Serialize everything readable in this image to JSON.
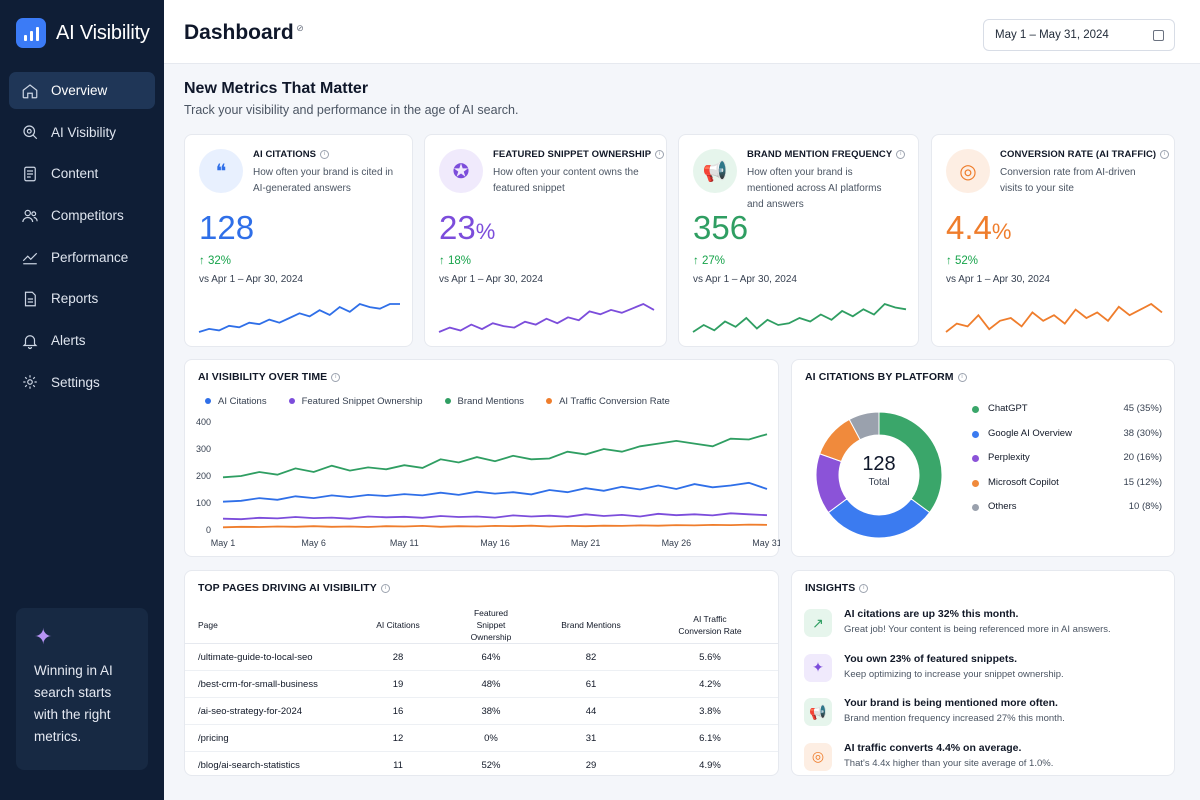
{
  "app": {
    "name": "AI Visibility"
  },
  "nav": [
    {
      "label": "Overview",
      "icon": "home-icon",
      "active": true
    },
    {
      "label": "AI Visibility",
      "icon": "search-icon"
    },
    {
      "label": "Content",
      "icon": "document-icon"
    },
    {
      "label": "Competitors",
      "icon": "users-icon"
    },
    {
      "label": "Performance",
      "icon": "trend-icon"
    },
    {
      "label": "Reports",
      "icon": "report-icon"
    },
    {
      "label": "Alerts",
      "icon": "bell-icon"
    },
    {
      "label": "Settings",
      "icon": "gear-icon"
    }
  ],
  "promo": {
    "text": "Winning in AI search starts with the right metrics.",
    "icon": "sparkle-icon"
  },
  "header": {
    "title": "Dashboard",
    "date_range": "May 1 – May 31, 2024"
  },
  "section": {
    "title": "New Metrics That Matter",
    "subtitle": "Track your visibility and performance in the age of AI search."
  },
  "metrics": [
    {
      "title": "AI CITATIONS",
      "desc": "How often your brand is cited in AI-generated answers",
      "value": "128",
      "unit": "",
      "change": "↑ 32%",
      "vs": "vs Apr 1 – Apr 30, 2024",
      "color": "#2f6fe8",
      "bg": "#e8f0fe",
      "icon": "quote-icon",
      "glyph": "❝",
      "spark": [
        6,
        8,
        7,
        10,
        9,
        12,
        11,
        14,
        12,
        15,
        18,
        16,
        20,
        17,
        22,
        19,
        24,
        22,
        21,
        24,
        24
      ]
    },
    {
      "title": "FEATURED SNIPPET OWNERSHIP",
      "desc": "How often your content owns the featured snippet",
      "value": "23",
      "unit": "%",
      "change": "↑ 18%",
      "vs": "vs Apr 1 – Apr 30, 2024",
      "color": "#7c4ddb",
      "bg": "#f0eafc",
      "icon": "badge-icon",
      "glyph": "✪",
      "spark": [
        4,
        7,
        5,
        9,
        6,
        10,
        8,
        7,
        11,
        9,
        13,
        10,
        14,
        12,
        18,
        16,
        19,
        17,
        20,
        23,
        19
      ]
    },
    {
      "title": "BRAND MENTION FREQUENCY",
      "desc": "How often your brand is mentioned across AI platforms and answers",
      "value": "356",
      "unit": "",
      "change": "↑ 27%",
      "vs": "vs Apr 1 – Apr 30, 2024",
      "color": "#2f9e62",
      "bg": "#e6f5ec",
      "icon": "megaphone-icon",
      "glyph": "📢",
      "spark": [
        6,
        10,
        7,
        12,
        9,
        14,
        8,
        13,
        10,
        11,
        14,
        12,
        16,
        13,
        18,
        15,
        19,
        16,
        22,
        20,
        19
      ]
    },
    {
      "title": "CONVERSION RATE (AI TRAFFIC)",
      "desc": "Conversion rate from AI-driven visits to your site",
      "value": "4.4",
      "unit": "%",
      "change": "↑ 52%",
      "vs": "vs Apr 1 – Apr 30, 2024",
      "color": "#ef7d2c",
      "bg": "#fdeee3",
      "icon": "target-icon",
      "glyph": "◎",
      "spark": [
        6,
        9,
        8,
        12,
        7,
        10,
        11,
        8,
        13,
        10,
        12,
        9,
        14,
        11,
        13,
        10,
        15,
        12,
        14,
        16,
        13
      ]
    }
  ],
  "visibility_chart": {
    "title": "AI VISIBILITY OVER TIME",
    "legend": [
      {
        "name": "AI Citations",
        "color": "#2f6fe8"
      },
      {
        "name": "Featured Snippet Ownership",
        "color": "#7c4ddb"
      },
      {
        "name": "Brand Mentions",
        "color": "#2f9e62"
      },
      {
        "name": "AI Traffic Conversion Rate",
        "color": "#ef7d2c"
      }
    ]
  },
  "platform_chart": {
    "title": "AI CITATIONS BY PLATFORM",
    "total_value": "128",
    "total_label": "Total"
  },
  "chart_data": [
    {
      "type": "line",
      "title": "AI VISIBILITY OVER TIME",
      "x_ticks": [
        "May 1",
        "May 6",
        "May 11",
        "May 16",
        "May 21",
        "May 26",
        "May 31"
      ],
      "x": [
        1,
        2,
        3,
        4,
        5,
        6,
        7,
        8,
        9,
        10,
        11,
        12,
        13,
        14,
        15,
        16,
        17,
        18,
        19,
        20,
        21,
        22,
        23,
        24,
        25,
        26,
        27,
        28,
        29,
        30,
        31
      ],
      "ylim": [
        0,
        400
      ],
      "y_ticks": [
        "0",
        "100",
        "200",
        "300",
        "400"
      ],
      "series": [
        {
          "name": "AI Citations",
          "color": "#2f6fe8",
          "values": [
            105,
            108,
            118,
            112,
            125,
            118,
            128,
            122,
            130,
            126,
            133,
            128,
            138,
            130,
            142,
            135,
            140,
            132,
            148,
            140,
            155,
            145,
            160,
            150,
            165,
            152,
            170,
            158,
            165,
            175,
            152
          ]
        },
        {
          "name": "Featured Snippet Ownership",
          "color": "#7c4ddb",
          "values": [
            42,
            40,
            45,
            43,
            48,
            44,
            46,
            42,
            50,
            47,
            49,
            45,
            52,
            48,
            50,
            46,
            54,
            50,
            53,
            49,
            58,
            52,
            56,
            50,
            60,
            55,
            58,
            54,
            62,
            58,
            55
          ]
        },
        {
          "name": "Brand Mentions",
          "color": "#2f9e62",
          "values": [
            195,
            200,
            215,
            205,
            228,
            215,
            238,
            220,
            232,
            225,
            240,
            230,
            262,
            250,
            270,
            255,
            275,
            262,
            265,
            290,
            280,
            300,
            290,
            310,
            320,
            330,
            320,
            310,
            338,
            335,
            355
          ]
        },
        {
          "name": "AI Traffic Conversion Rate",
          "color": "#ef7d2c",
          "values": [
            10,
            12,
            11,
            13,
            12,
            14,
            12,
            13,
            11,
            14,
            13,
            15,
            12,
            14,
            13,
            15,
            14,
            16,
            13,
            15,
            14,
            16,
            15,
            17,
            16,
            18,
            17,
            19,
            18,
            20,
            19
          ]
        }
      ]
    },
    {
      "type": "pie",
      "title": "AI CITATIONS BY PLATFORM",
      "categories": [
        "ChatGPT",
        "Google AI Overview",
        "Perplexity",
        "Microsoft Copilot",
        "Others"
      ],
      "values": [
        45,
        38,
        20,
        15,
        10
      ],
      "labels": [
        "45 (35%)",
        "38 (30%)",
        "20 (16%)",
        "15 (12%)",
        "10 (8%)"
      ],
      "colors": [
        "#3aa66a",
        "#3b7bf0",
        "#8b53d8",
        "#f08a3c",
        "#9aa1ad"
      ]
    }
  ],
  "top_pages": {
    "title": "TOP PAGES DRIVING AI VISIBILITY",
    "columns": [
      "Page",
      "AI Citations",
      "Featured Snippet Ownership",
      "Brand Mentions",
      "AI Traffic Conversion Rate"
    ],
    "rows": [
      [
        "/ultimate-guide-to-local-seo",
        "28",
        "64%",
        "82",
        "5.6%"
      ],
      [
        "/best-crm-for-small-business",
        "19",
        "48%",
        "61",
        "4.2%"
      ],
      [
        "/ai-seo-strategy-for-2024",
        "16",
        "38%",
        "44",
        "3.8%"
      ],
      [
        "/pricing",
        "12",
        "0%",
        "31",
        "6.1%"
      ],
      [
        "/blog/ai-search-statistics",
        "11",
        "52%",
        "29",
        "4.9%"
      ]
    ]
  },
  "insights": {
    "title": "INSIGHTS",
    "items": [
      {
        "title": "AI citations are up 32% this month.",
        "text": "Great job! Your content is being referenced more in AI answers.",
        "icon": "trend-up-icon",
        "glyph": "↗",
        "color": "#2f9e62",
        "bg": "#e6f5ec"
      },
      {
        "title": "You own 23% of featured snippets.",
        "text": "Keep optimizing to increase your snippet ownership.",
        "icon": "sparkle-icon",
        "glyph": "✦",
        "color": "#7c4ddb",
        "bg": "#f0eafc"
      },
      {
        "title": "Your brand is being mentioned more often.",
        "text": "Brand mention frequency increased 27% this month.",
        "icon": "megaphone-icon",
        "glyph": "📢",
        "color": "#2f9e62",
        "bg": "#e6f5ec"
      },
      {
        "title": "AI traffic converts 4.4% on average.",
        "text": "That's 4.4x higher than your site average of 1.0%.",
        "icon": "target-icon",
        "glyph": "◎",
        "color": "#ef7d2c",
        "bg": "#fdeee3"
      }
    ]
  }
}
